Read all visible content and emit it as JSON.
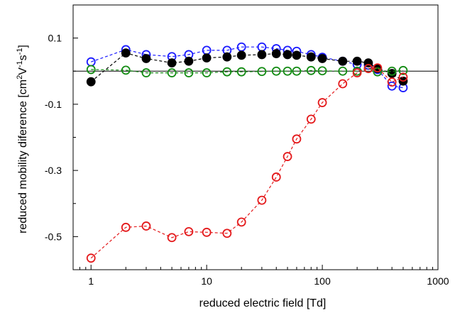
{
  "chart_data": {
    "type": "scatter",
    "xscale": "log",
    "xlim": [
      0.7,
      1000
    ],
    "ylim": [
      -0.6,
      0.2
    ],
    "xticks": [
      {
        "value": 1,
        "label": "1"
      },
      {
        "value": 10,
        "label": "10"
      },
      {
        "value": 100,
        "label": "100"
      },
      {
        "value": 1000,
        "label": "1000"
      }
    ],
    "yticks": [
      {
        "value": 0.1,
        "label": "0.1"
      },
      {
        "value": -0.1,
        "label": "-0.1"
      },
      {
        "value": -0.3,
        "label": "-0.3"
      },
      {
        "value": -0.5,
        "label": "-0.5"
      }
    ],
    "xlabel": "reduced electric field    [Td]",
    "ylabel_main": "reduced mobility diference    [cm",
    "ylabel_sup1": "2",
    "ylabel_mid1": "V",
    "ylabel_sup2": "-1",
    "ylabel_mid2": "s",
    "ylabel_sup3": "-1",
    "ylabel_end": "]",
    "zero_line": true,
    "grid": false,
    "series": [
      {
        "color": "#1a1aff",
        "filled": false,
        "x": [
          1,
          2,
          3,
          5,
          7,
          10,
          15,
          20,
          30,
          40,
          50,
          60,
          80,
          100,
          150,
          200,
          250,
          300,
          400,
          500
        ],
        "y": [
          0.028,
          0.065,
          0.05,
          0.044,
          0.05,
          0.063,
          0.063,
          0.073,
          0.073,
          0.068,
          0.063,
          0.06,
          0.05,
          0.042,
          0.03,
          0.02,
          0.018,
          0.005,
          -0.045,
          -0.05
        ]
      },
      {
        "color": "#000000",
        "filled": true,
        "x": [
          1,
          2,
          3,
          5,
          7,
          10,
          15,
          20,
          30,
          40,
          50,
          60,
          80,
          100,
          150,
          200,
          250,
          300,
          400,
          500
        ],
        "y": [
          -0.032,
          0.055,
          0.038,
          0.025,
          0.03,
          0.04,
          0.043,
          0.048,
          0.05,
          0.053,
          0.05,
          0.048,
          0.043,
          0.038,
          0.03,
          0.03,
          0.025,
          0.008,
          -0.007,
          -0.03
        ]
      },
      {
        "color": "#148c14",
        "filled": false,
        "x": [
          1,
          2,
          3,
          5,
          7,
          10,
          15,
          20,
          30,
          40,
          50,
          60,
          80,
          100,
          150,
          200,
          250,
          300,
          400,
          500
        ],
        "y": [
          0.005,
          0.003,
          -0.005,
          -0.005,
          -0.005,
          -0.005,
          -0.002,
          -0.002,
          -0.001,
          0.0,
          0.0,
          0.0,
          0.002,
          0.001,
          0.0,
          0.0,
          0.008,
          -0.002,
          0.0,
          0.002
        ]
      },
      {
        "color": "#e41a1c",
        "filled": false,
        "x": [
          1,
          2,
          3,
          5,
          7,
          10,
          15,
          20,
          30,
          40,
          50,
          60,
          80,
          100,
          150,
          200,
          250,
          300,
          400,
          500
        ],
        "y": [
          -0.565,
          -0.472,
          -0.468,
          -0.503,
          -0.485,
          -0.487,
          -0.49,
          -0.456,
          -0.39,
          -0.32,
          -0.258,
          -0.205,
          -0.145,
          -0.095,
          -0.038,
          -0.005,
          0.008,
          0.01,
          -0.033,
          -0.018
        ]
      }
    ]
  }
}
